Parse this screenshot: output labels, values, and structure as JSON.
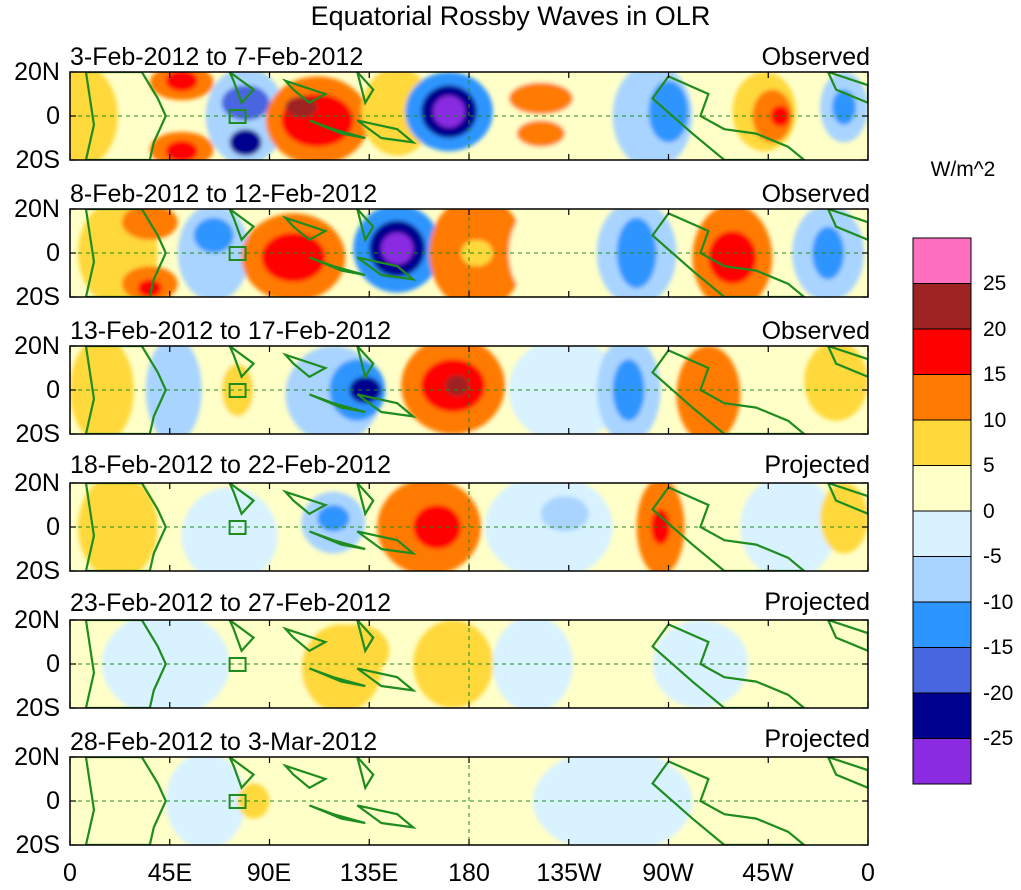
{
  "map": {
    "title": "Equatorial Rossby Waves in OLR",
    "region": "20S-20N, 0-360 longitude",
    "panels": [
      {
        "date": "3-Feb-2012 to 7-Feb-2012",
        "status": "Observed"
      },
      {
        "date": "8-Feb-2012 to 12-Feb-2012",
        "status": "Observed"
      },
      {
        "date": "13-Feb-2012 to 17-Feb-2012",
        "status": "Observed"
      },
      {
        "date": "18-Feb-2012 to 22-Feb-2012",
        "status": "Projected"
      },
      {
        "date": "23-Feb-2012 to 27-Feb-2012",
        "status": "Projected"
      },
      {
        "date": "28-Feb-2012 to 3-Mar-2012",
        "status": "Projected"
      }
    ],
    "lat_labels": [
      "20N",
      "0",
      "20S"
    ],
    "lon_labels": [
      "0",
      "45E",
      "90E",
      "135E",
      "180",
      "135W",
      "90W",
      "45W",
      "0"
    ],
    "colorbar": {
      "unit": "W/m^2",
      "labels": [
        "25",
        "20",
        "15",
        "10",
        "5",
        "0",
        "-5",
        "-10",
        "-15",
        "-20",
        "-25"
      ],
      "colors": [
        "#ff6fc0",
        "#9e2424",
        "#ff0000",
        "#ff7a00",
        "#ffd83a",
        "#ffffc8",
        "#d8f2ff",
        "#a8d4ff",
        "#2d95ff",
        "#4866e0",
        "#00008f",
        "#8a2be2"
      ]
    }
  }
}
